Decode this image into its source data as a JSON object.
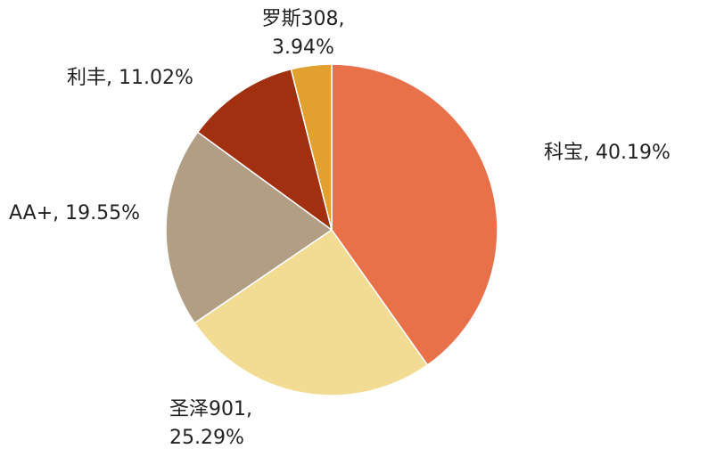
{
  "chart_data": {
    "type": "pie",
    "values": [
      40.19,
      25.29,
      19.55,
      11.02,
      3.94
    ],
    "value_labels": [
      [
        "科宝, 40.19%"
      ],
      [
        "圣泽901,",
        "25.29%"
      ],
      [
        "AA+, 19.55%"
      ],
      [
        "利丰, 11.02%"
      ],
      [
        "罗斯308,",
        "3.94%"
      ]
    ],
    "colors": [
      "#e8714a",
      "#f2dc94",
      "#b29e84",
      "#a0300f",
      "#e2a02e"
    ]
  }
}
